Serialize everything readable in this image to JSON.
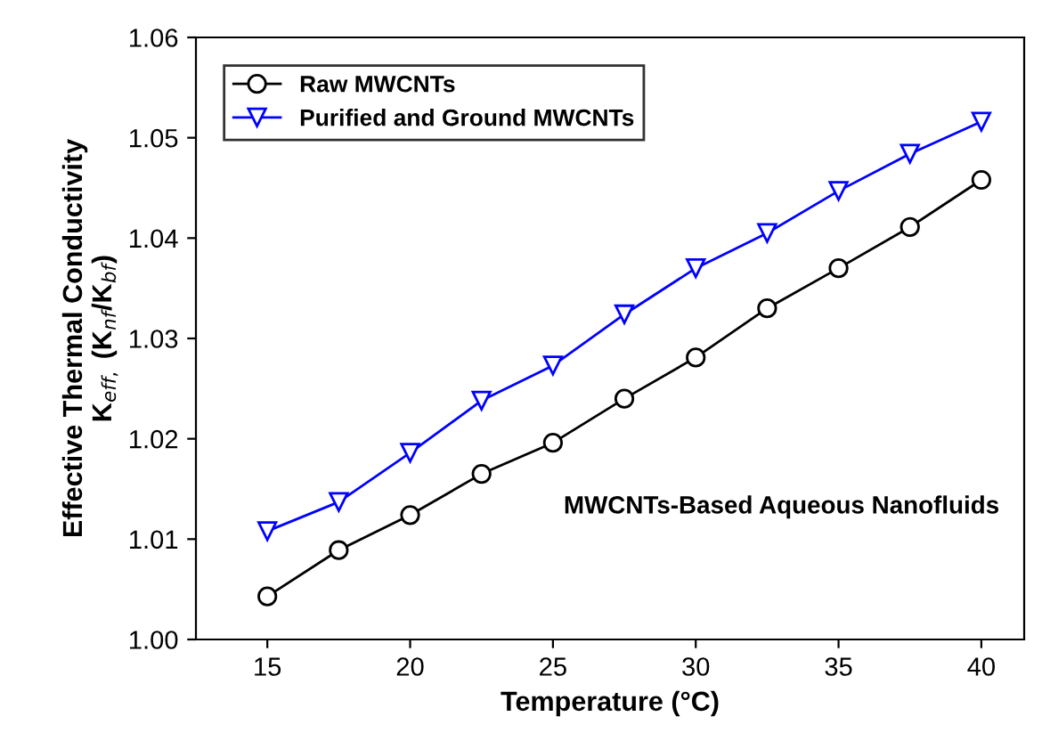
{
  "chart_data": {
    "type": "line",
    "xlabel": "Temperature (°C)",
    "ylabel": "Effective Thermal Conductivity\nK$_{eff,}$ (K$_{nf}$/K$_{bf}$)",
    "x": [
      15,
      17.5,
      20,
      22.5,
      25,
      27.5,
      30,
      32.5,
      35,
      37.5,
      40
    ],
    "series": [
      {
        "name": "Raw MWCNTs",
        "color": "#000000",
        "marker": "circle",
        "values": [
          1.0043,
          1.0089,
          1.0124,
          1.0165,
          1.0196,
          1.024,
          1.0281,
          1.033,
          1.037,
          1.0411,
          1.0458
        ]
      },
      {
        "name": "Purified and Ground MWCNTs",
        "color": "#0000ff",
        "marker": "triangle",
        "values": [
          1.0108,
          1.0137,
          1.0186,
          1.0238,
          1.0273,
          1.0324,
          1.037,
          1.0405,
          1.0447,
          1.0484,
          1.0516
        ]
      }
    ],
    "xlim": [
      12.5,
      41.5
    ],
    "xticks": [
      15,
      20,
      25,
      30,
      35,
      40
    ],
    "ylim": [
      1.0,
      1.06
    ],
    "yticks": [
      {
        "value": 1.0,
        "label": "1.00"
      },
      {
        "value": 1.01,
        "label": "1.01"
      },
      {
        "value": 1.02,
        "label": "1.02"
      },
      {
        "value": 1.03,
        "label": "1.03"
      },
      {
        "value": 1.04,
        "label": "1.04"
      },
      {
        "value": 1.05,
        "label": "1.05"
      },
      {
        "value": 1.06,
        "label": "1.06"
      }
    ],
    "annotations": [
      "MWCNTs-Based Aqueous Nanofluids"
    ],
    "legend": "top left",
    "grid": false,
    "line_style": "solid"
  }
}
